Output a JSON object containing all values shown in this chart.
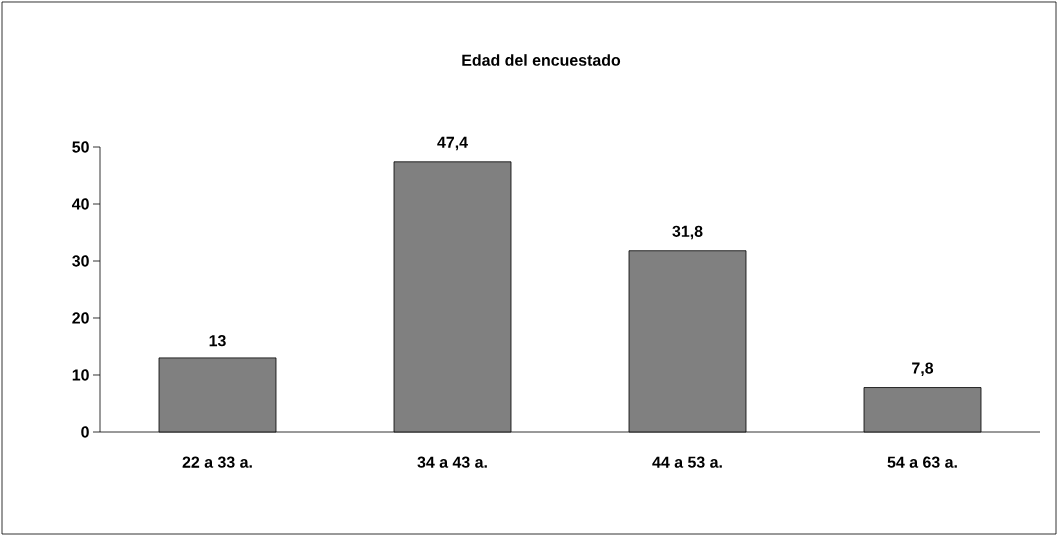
{
  "chart_data": {
    "type": "bar",
    "title": "Edad del encuestado",
    "categories": [
      "22 a 33 a.",
      "34 a 43 a.",
      "44 a 53 a.",
      "54 a 63 a."
    ],
    "values": [
      13,
      47.4,
      31.8,
      7.8
    ],
    "value_labels": [
      "13",
      "47,4",
      "31,8",
      "7,8"
    ],
    "color": "#808080",
    "ylim": [
      0,
      50
    ],
    "yticks": [
      0,
      10,
      20,
      30,
      40,
      50
    ],
    "grid": false
  }
}
